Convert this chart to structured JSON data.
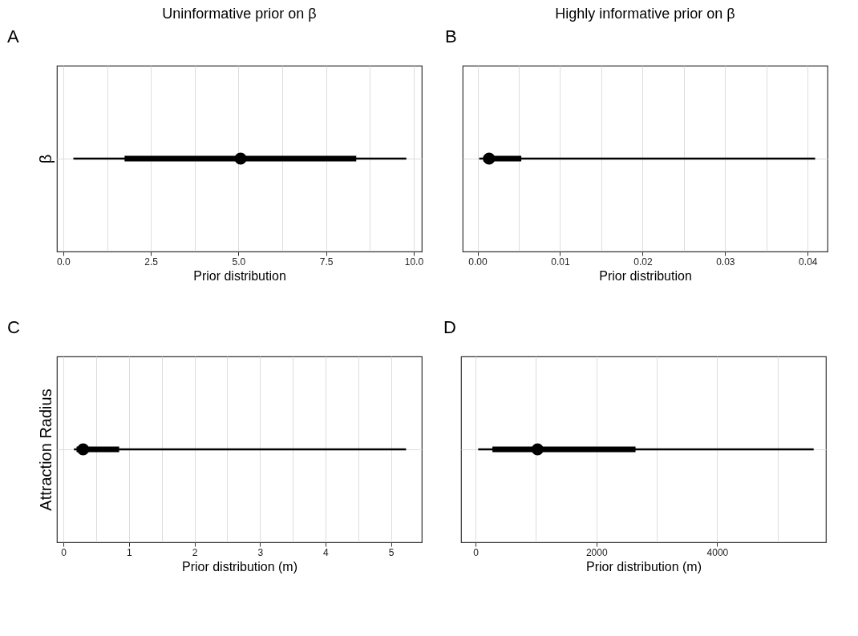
{
  "chart_data": [
    {
      "type": "box",
      "title": "Uninformative prior on β",
      "xlabel": "Prior distribution",
      "ylabel": "β",
      "annotations": [
        "A"
      ],
      "orientation": "horizontal",
      "categories": [
        null
      ],
      "xlim": [
        -0.18,
        10.23
      ],
      "xticks": [
        {
          "value": 0,
          "label": "0.0"
        },
        {
          "value": 1.25,
          "label": null
        },
        {
          "value": 2.5,
          "label": "2.5"
        },
        {
          "value": 3.75,
          "label": null
        },
        {
          "value": 5,
          "label": "5.0"
        },
        {
          "value": 6.25,
          "label": null
        },
        {
          "value": 7.5,
          "label": "7.5"
        },
        {
          "value": 8.75,
          "label": null
        },
        {
          "value": 10,
          "label": "10.0"
        }
      ],
      "boxes": [
        {
          "low": 0.29,
          "q1": 1.75,
          "median": 5.06,
          "q3": 8.36,
          "high": 9.79
        }
      ],
      "color": "#000000",
      "grid": true,
      "tick_labels": "x"
    },
    {
      "type": "box",
      "title": "Highly informative prior on β",
      "xlabel": "Prior distribution",
      "annotations": [
        "B"
      ],
      "orientation": "horizontal",
      "categories": [
        null
      ],
      "xlim": [
        -0.0018,
        0.0424
      ],
      "xticks": [
        {
          "value": 0,
          "label": "0.00"
        },
        {
          "value": 0.005,
          "label": null
        },
        {
          "value": 0.01,
          "label": "0.01"
        },
        {
          "value": 0.015,
          "label": null
        },
        {
          "value": 0.02,
          "label": "0.02"
        },
        {
          "value": 0.025,
          "label": null
        },
        {
          "value": 0.03,
          "label": "0.03"
        },
        {
          "value": 0.035,
          "label": null
        },
        {
          "value": 0.04,
          "label": "0.04"
        }
      ],
      "boxes": [
        {
          "low": 0.0002,
          "q1": 0.0007,
          "median": 0.0014,
          "q3": 0.0053,
          "high": 0.0409
        }
      ],
      "color": "#000000",
      "grid": true,
      "tick_labels": "x"
    },
    {
      "type": "box",
      "xlabel": "Prior distribution (m)",
      "ylabel": "Attraction Radius",
      "annotations": [
        "C"
      ],
      "orientation": "horizontal",
      "categories": [
        null
      ],
      "xlim": [
        -0.1,
        5.47
      ],
      "xticks": [
        0,
        {
          "value": 0.5,
          "label": null
        },
        1,
        {
          "value": 1.5,
          "label": null
        },
        2,
        {
          "value": 2.5,
          "label": null
        },
        3,
        {
          "value": 3.5,
          "label": null
        },
        4,
        {
          "value": 4.5,
          "label": null
        },
        5
      ],
      "boxes": [
        {
          "low": 0.16,
          "q1": 0.2,
          "median": 0.3,
          "q3": 0.85,
          "high": 5.23
        }
      ],
      "color": "#000000",
      "grid": true,
      "tick_labels": "x"
    },
    {
      "type": "box",
      "xlabel": "Prior distribution (m)",
      "annotations": [
        "D"
      ],
      "orientation": "horizontal",
      "categories": [
        null
      ],
      "xlim": [
        -240,
        5800
      ],
      "xticks": [
        0,
        {
          "value": 1000,
          "label": null
        },
        2000,
        {
          "value": 3000,
          "label": null
        },
        4000,
        {
          "value": 5000,
          "label": null
        }
      ],
      "boxes": [
        {
          "low": 43,
          "q1": 279,
          "median": 1026,
          "q3": 2648,
          "high": 5597
        }
      ],
      "color": "#000000",
      "grid": true,
      "tick_labels": "x"
    }
  ]
}
